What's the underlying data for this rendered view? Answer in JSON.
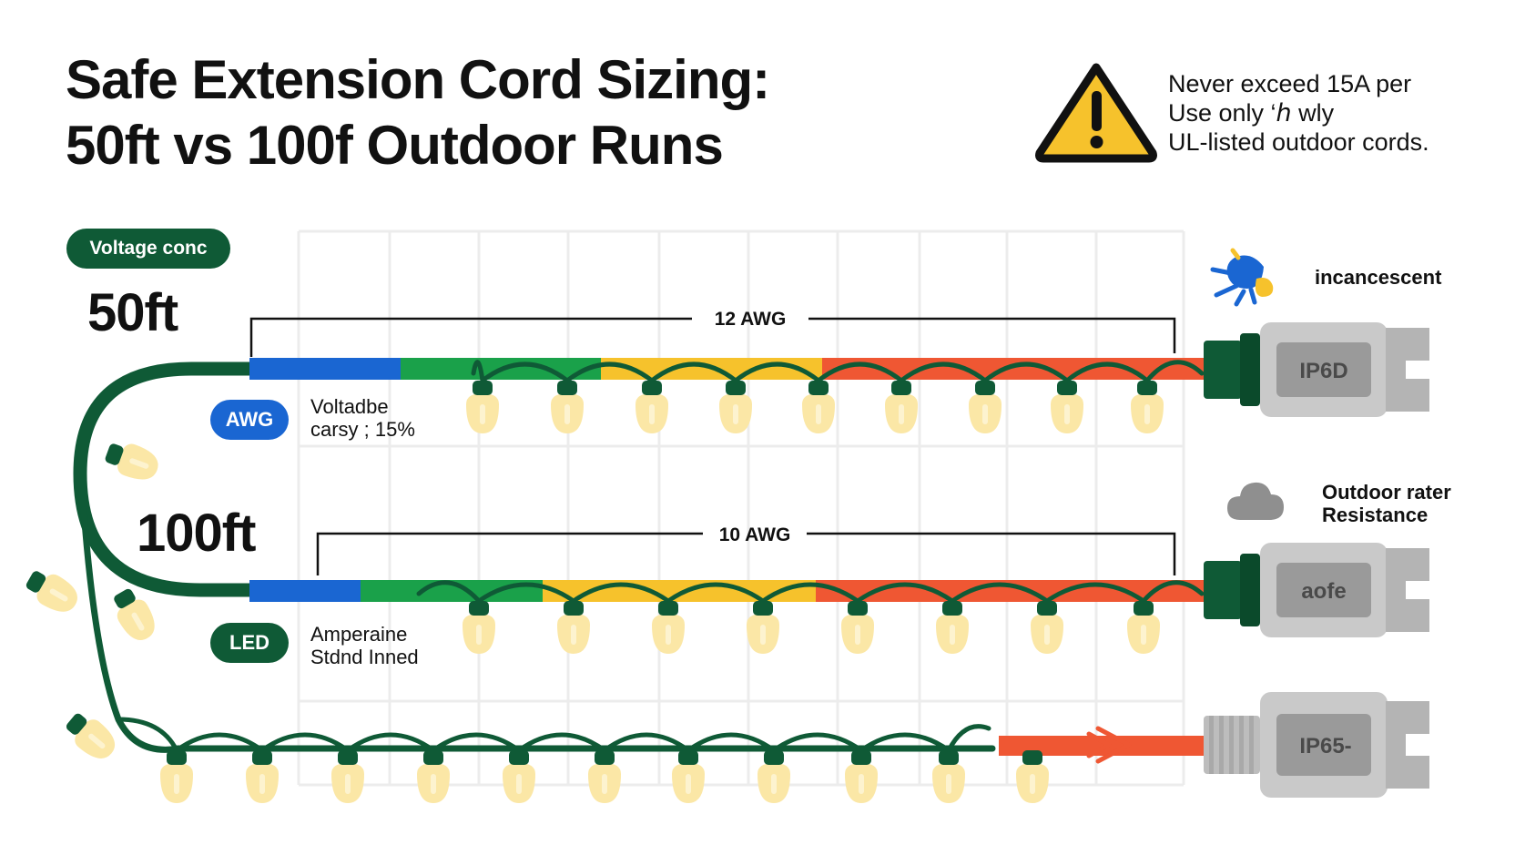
{
  "title": {
    "line1": "Safe Extension Cord Sizing:",
    "line2": "50ft vs 100f Outdoor Runs"
  },
  "warning": {
    "icon": "warning-triangle-icon",
    "line1": "Never exceed 15A per",
    "line2": "Use only ‘ℎ wly",
    "line3": "UL-listed outdoor cords."
  },
  "pills": {
    "voltage": "Voltage conc",
    "awg": "AWG",
    "led": "LED"
  },
  "runs": {
    "run50": {
      "label": "50ft",
      "gauge": "12 AWG",
      "note_line1": "Voltadbe",
      "note_line2": "carsy ; 15%",
      "plug": "IP6D"
    },
    "run100": {
      "label": "100ft",
      "gauge": "10 AWG",
      "note_line1": "Amperaine",
      "note_line2": "Stdnd Inned",
      "plug": "aofe"
    },
    "run3": {
      "plug": "IP65-"
    }
  },
  "legend": {
    "incandescent": "incancescent",
    "outdoor_line1": "Outdoor rater",
    "outdoor_line2": "Resistance"
  },
  "colors": {
    "dark_green": "#0f5a36",
    "blue": "#1a66d2",
    "green": "#1aa14a",
    "yellow": "#f6c22c",
    "red": "#ef5733",
    "bulb": "#fbe7a6",
    "plug_gray": "#c9c9c9"
  }
}
